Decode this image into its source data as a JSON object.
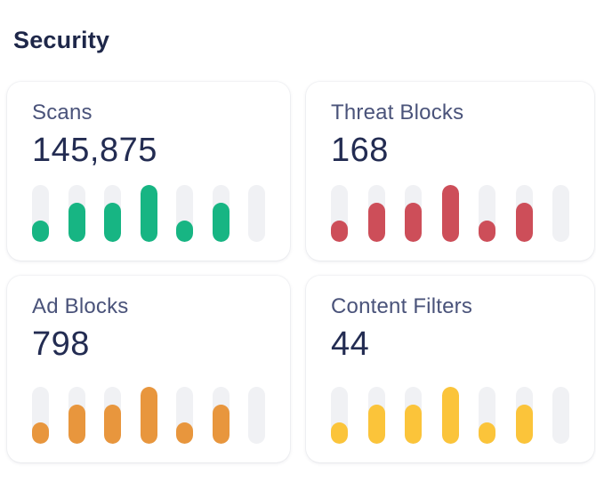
{
  "page": {
    "title": "Security"
  },
  "theme": {
    "title_color": "#1e2749",
    "label_color": "#4a537a",
    "value_color": "#232c52",
    "card_background": "#ffffff",
    "track_color": "#f0f1f4"
  },
  "chart_data": {
    "type": "bar",
    "note": "each card shows a 7-segment pill sparkline, values as percent of full track height",
    "bar_count": 7
  },
  "cards": [
    {
      "label": "Scans",
      "value": "145,875",
      "accent_color": "#17b583",
      "bars_pct": [
        38,
        69,
        69,
        100,
        38,
        69,
        0
      ]
    },
    {
      "label": "Threat Blocks",
      "value": "168",
      "accent_color": "#cd4e59",
      "bars_pct": [
        38,
        69,
        69,
        100,
        38,
        69,
        0
      ]
    },
    {
      "label": "Ad Blocks",
      "value": "798",
      "accent_color": "#e8963d",
      "bars_pct": [
        38,
        69,
        69,
        100,
        38,
        69,
        0
      ]
    },
    {
      "label": "Content Filters",
      "value": "44",
      "accent_color": "#fbc43a",
      "bars_pct": [
        38,
        69,
        69,
        100,
        38,
        69,
        0
      ]
    }
  ]
}
